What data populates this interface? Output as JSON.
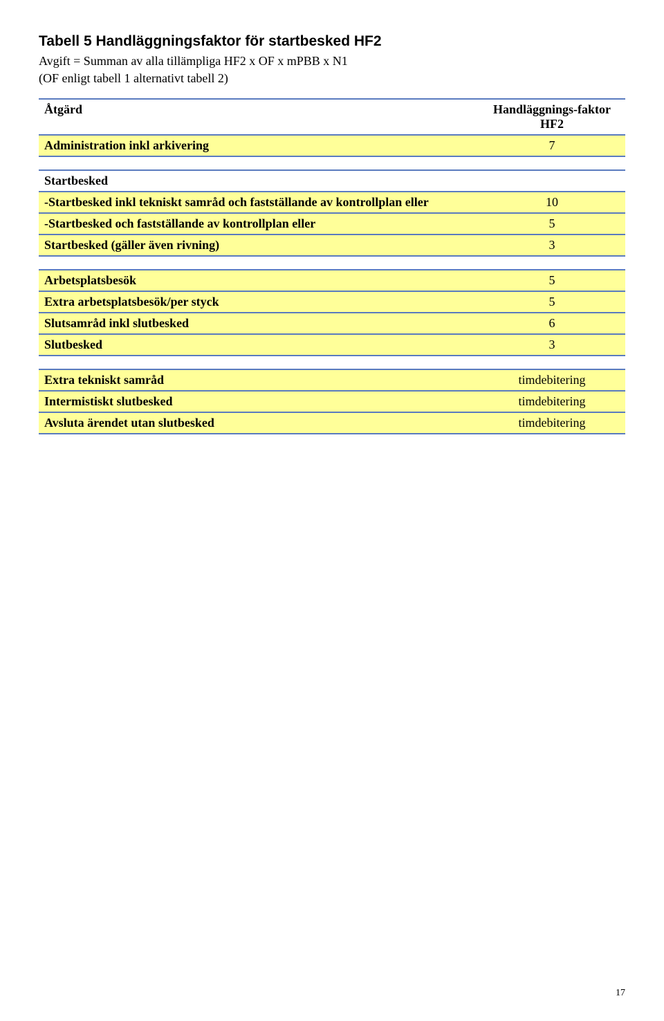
{
  "title": "Tabell 5 Handläggningsfaktor för startbesked HF2",
  "formula": "Avgift = Summan av alla tillämpliga HF2 x OF x mPBB x N1",
  "note": "(OF enligt tabell 1 alternativt tabell 2)",
  "colors": {
    "border": "#5a7bbf",
    "yellow_fill": "#ffff99",
    "background": "#ffffff",
    "text": "#000000"
  },
  "block1": {
    "header_label": "Åtgärd",
    "header_value": "Handläggnings-faktor HF2",
    "rows": [
      {
        "label": "Administration inkl arkivering",
        "value": "7",
        "bold_label": true,
        "bold_value": false
      }
    ]
  },
  "block2": {
    "header": "Startbesked",
    "rows": [
      {
        "label": "-Startbesked inkl tekniskt samråd och fastställande av kontrollplan eller",
        "value": "10",
        "bold_label": true,
        "bold_value": false
      },
      {
        "label": "-Startbesked och fastställande av kontrollplan eller",
        "value": "5",
        "bold_label": true,
        "bold_value": false
      },
      {
        "label": "Startbesked (gäller även rivning)",
        "value": "3",
        "bold_label": true,
        "bold_value": false
      }
    ]
  },
  "block3": {
    "rows": [
      {
        "label": "Arbetsplatsbesök",
        "value": "5",
        "bold_label": true,
        "bold_value": false
      },
      {
        "label": "Extra arbetsplatsbesök/per styck",
        "value": "5",
        "bold_label": true,
        "bold_value": false
      },
      {
        "label": "Slutsamråd inkl slutbesked",
        "value": "6",
        "bold_label": true,
        "bold_value": false
      },
      {
        "label": "Slutbesked",
        "value": "3",
        "bold_label": true,
        "bold_value": false
      }
    ]
  },
  "block4": {
    "rows": [
      {
        "label": "Extra tekniskt samråd",
        "value": "timdebitering",
        "bold_label": true,
        "bold_value": false
      },
      {
        "label": "Intermistiskt slutbesked",
        "value": "timdebitering",
        "bold_label": true,
        "bold_value": false
      },
      {
        "label": "Avsluta ärendet utan slutbesked",
        "value": "timdebitering",
        "bold_label": true,
        "bold_value": false
      }
    ]
  },
  "page_number": "17"
}
